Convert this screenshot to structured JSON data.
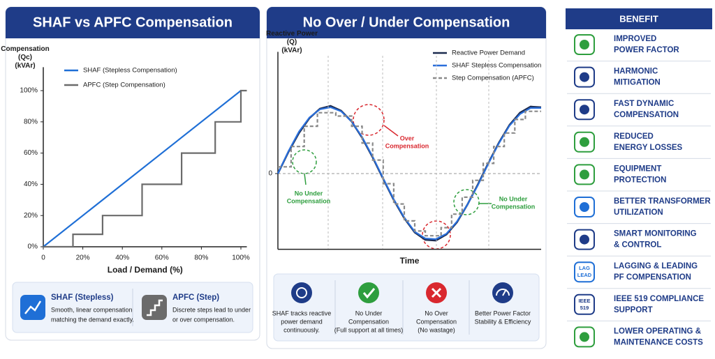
{
  "chart_data": [
    {
      "type": "line",
      "title": "SHAF vs APFC Compensation",
      "y_label": [
        "Compensation",
        "(Qc)",
        "(kVAr)"
      ],
      "x_label": "Load / Demand (%)",
      "xlim": [
        0,
        103
      ],
      "ylim": [
        0,
        115
      ],
      "xticks": [
        0,
        {
          "value": 20,
          "label": "20%"
        },
        {
          "value": 40,
          "label": "40%"
        },
        {
          "value": 60,
          "label": "60%"
        },
        {
          "value": 80,
          "label": "80%"
        },
        {
          "value": 100,
          "label": "100%"
        }
      ],
      "yticks": [
        {
          "value": 0,
          "label": "0%"
        },
        {
          "value": 20,
          "label": "20%"
        },
        {
          "value": 40,
          "label": "40%"
        },
        {
          "value": 60,
          "label": "60%"
        },
        {
          "value": 80,
          "label": "80%"
        },
        {
          "value": 100,
          "label": "100%"
        }
      ],
      "grid": false,
      "legend": "upper left",
      "series": [
        {
          "name": "SHAF (Stepless Compensation)",
          "color": "#1f6fd6",
          "x": [
            0,
            100
          ],
          "values": [
            0,
            100
          ]
        },
        {
          "name": "APFC (Step Compensation)",
          "color": "#6b6b6b",
          "x": [
            0,
            15,
            15,
            30,
            30,
            50,
            50,
            70,
            70,
            87,
            87,
            100,
            100,
            103
          ],
          "values": [
            0,
            0,
            8,
            8,
            20,
            20,
            40,
            40,
            60,
            60,
            80,
            80,
            100,
            100
          ]
        }
      ]
    },
    {
      "type": "line",
      "title": "No Over / Under Compensation",
      "y_label": [
        "Reactive Power",
        "(Q)",
        "(kVAr)"
      ],
      "x_label": "Time",
      "xlim": [
        0,
        100
      ],
      "ylim": [
        -1.12,
        1.8
      ],
      "yticks": [
        0
      ],
      "grid": true,
      "legend": "upper right",
      "x": [
        0,
        4,
        8,
        12,
        16,
        20,
        24,
        28,
        32,
        36,
        40,
        44,
        48,
        52,
        56,
        60,
        64,
        68,
        72,
        76,
        80,
        84,
        88,
        92,
        96,
        100
      ],
      "series": [
        {
          "name": "Reactive Power Demand",
          "color": "#1b2a4e",
          "values": [
            0,
            0.32,
            0.6,
            0.82,
            0.96,
            1.0,
            0.93,
            0.77,
            0.53,
            0.24,
            -0.08,
            -0.39,
            -0.66,
            -0.87,
            -0.98,
            -0.99,
            -0.9,
            -0.72,
            -0.46,
            -0.16,
            0.16,
            0.46,
            0.72,
            0.9,
            0.99,
            0.98
          ]
        },
        {
          "name": "SHAF Stepless Compensation",
          "color": "#2a6fdb",
          "values": [
            0,
            0.33,
            0.62,
            0.83,
            0.95,
            0.98,
            0.92,
            0.77,
            0.54,
            0.25,
            -0.07,
            -0.38,
            -0.65,
            -0.86,
            -0.96,
            -0.97,
            -0.89,
            -0.71,
            -0.46,
            -0.17,
            0.15,
            0.45,
            0.71,
            0.88,
            0.97,
            0.97
          ]
        },
        {
          "name": "Step Compensation (APFC)",
          "color": "#8a8a8a",
          "dashed": true,
          "x": [
            0,
            5,
            5,
            10,
            10,
            15,
            15,
            22,
            22,
            28,
            28,
            32,
            32,
            36,
            36,
            40,
            40,
            44,
            44,
            48,
            48,
            52,
            52,
            56,
            56,
            62,
            62,
            66,
            66,
            70,
            70,
            74,
            74,
            78,
            78,
            82,
            82,
            86,
            86,
            90,
            90,
            94,
            94,
            100
          ],
          "values": [
            0.1,
            0.1,
            0.4,
            0.4,
            0.7,
            0.7,
            0.9,
            0.9,
            0.85,
            0.85,
            0.7,
            0.7,
            0.45,
            0.45,
            0.2,
            0.2,
            -0.15,
            -0.15,
            -0.45,
            -0.45,
            -0.7,
            -0.7,
            -0.85,
            -0.85,
            -0.92,
            -0.92,
            -0.8,
            -0.8,
            -0.6,
            -0.6,
            -0.35,
            -0.35,
            -0.1,
            -0.1,
            0.15,
            0.15,
            0.4,
            0.4,
            0.6,
            0.6,
            0.8,
            0.8,
            0.92,
            0.92
          ]
        }
      ],
      "annotations": [
        [
          "Over",
          "Compensation"
        ],
        [
          "No Under",
          "Compensation"
        ],
        [
          "No Under",
          "Compensation"
        ]
      ]
    }
  ],
  "cards_left": [
    {
      "title": "SHAF (Stepless)",
      "text": [
        "Smooth, linear compensation",
        "matching the demand exactly."
      ]
    },
    {
      "title": "APFC (Step)",
      "text": [
        "Discrete steps lead to under",
        "or over compensation."
      ]
    }
  ],
  "cards_right": [
    {
      "text": [
        "SHAF tracks reactive",
        "power demand",
        "continuously."
      ]
    },
    {
      "text": [
        "No Under",
        "Compensation",
        "(Full support at all times)"
      ]
    },
    {
      "text": [
        "No Over",
        "Compensation",
        "(No wastage)"
      ]
    },
    {
      "text": [
        "Better Power Factor",
        "Stability & Efficiency"
      ]
    }
  ],
  "benefits": {
    "title": "BENEFIT",
    "items": [
      {
        "lines": [
          "IMPROVED",
          "POWER FACTOR"
        ]
      },
      {
        "lines": [
          "HARMONIC",
          "MITIGATION"
        ]
      },
      {
        "lines": [
          "FAST DYNAMIC",
          "COMPENSATION"
        ]
      },
      {
        "lines": [
          "REDUCED",
          "ENERGY LOSSES"
        ]
      },
      {
        "lines": [
          "EQUIPMENT",
          "PROTECTION"
        ]
      },
      {
        "lines": [
          "BETTER TRANSFORMER",
          "UTILIZATION"
        ]
      },
      {
        "lines": [
          "SMART MONITORING",
          "& CONTROL"
        ]
      },
      {
        "lines": [
          "LAGGING & LEADING",
          "PF COMPENSATION"
        ],
        "icon_text": [
          "LAG",
          "LEAD"
        ]
      },
      {
        "lines": [
          "IEEE 519 COMPLIANCE",
          "SUPPORT"
        ],
        "icon_text": [
          "IEEE",
          "519"
        ]
      },
      {
        "lines": [
          "LOWER OPERATING &",
          "MAINTENANCE COSTS"
        ]
      }
    ]
  }
}
